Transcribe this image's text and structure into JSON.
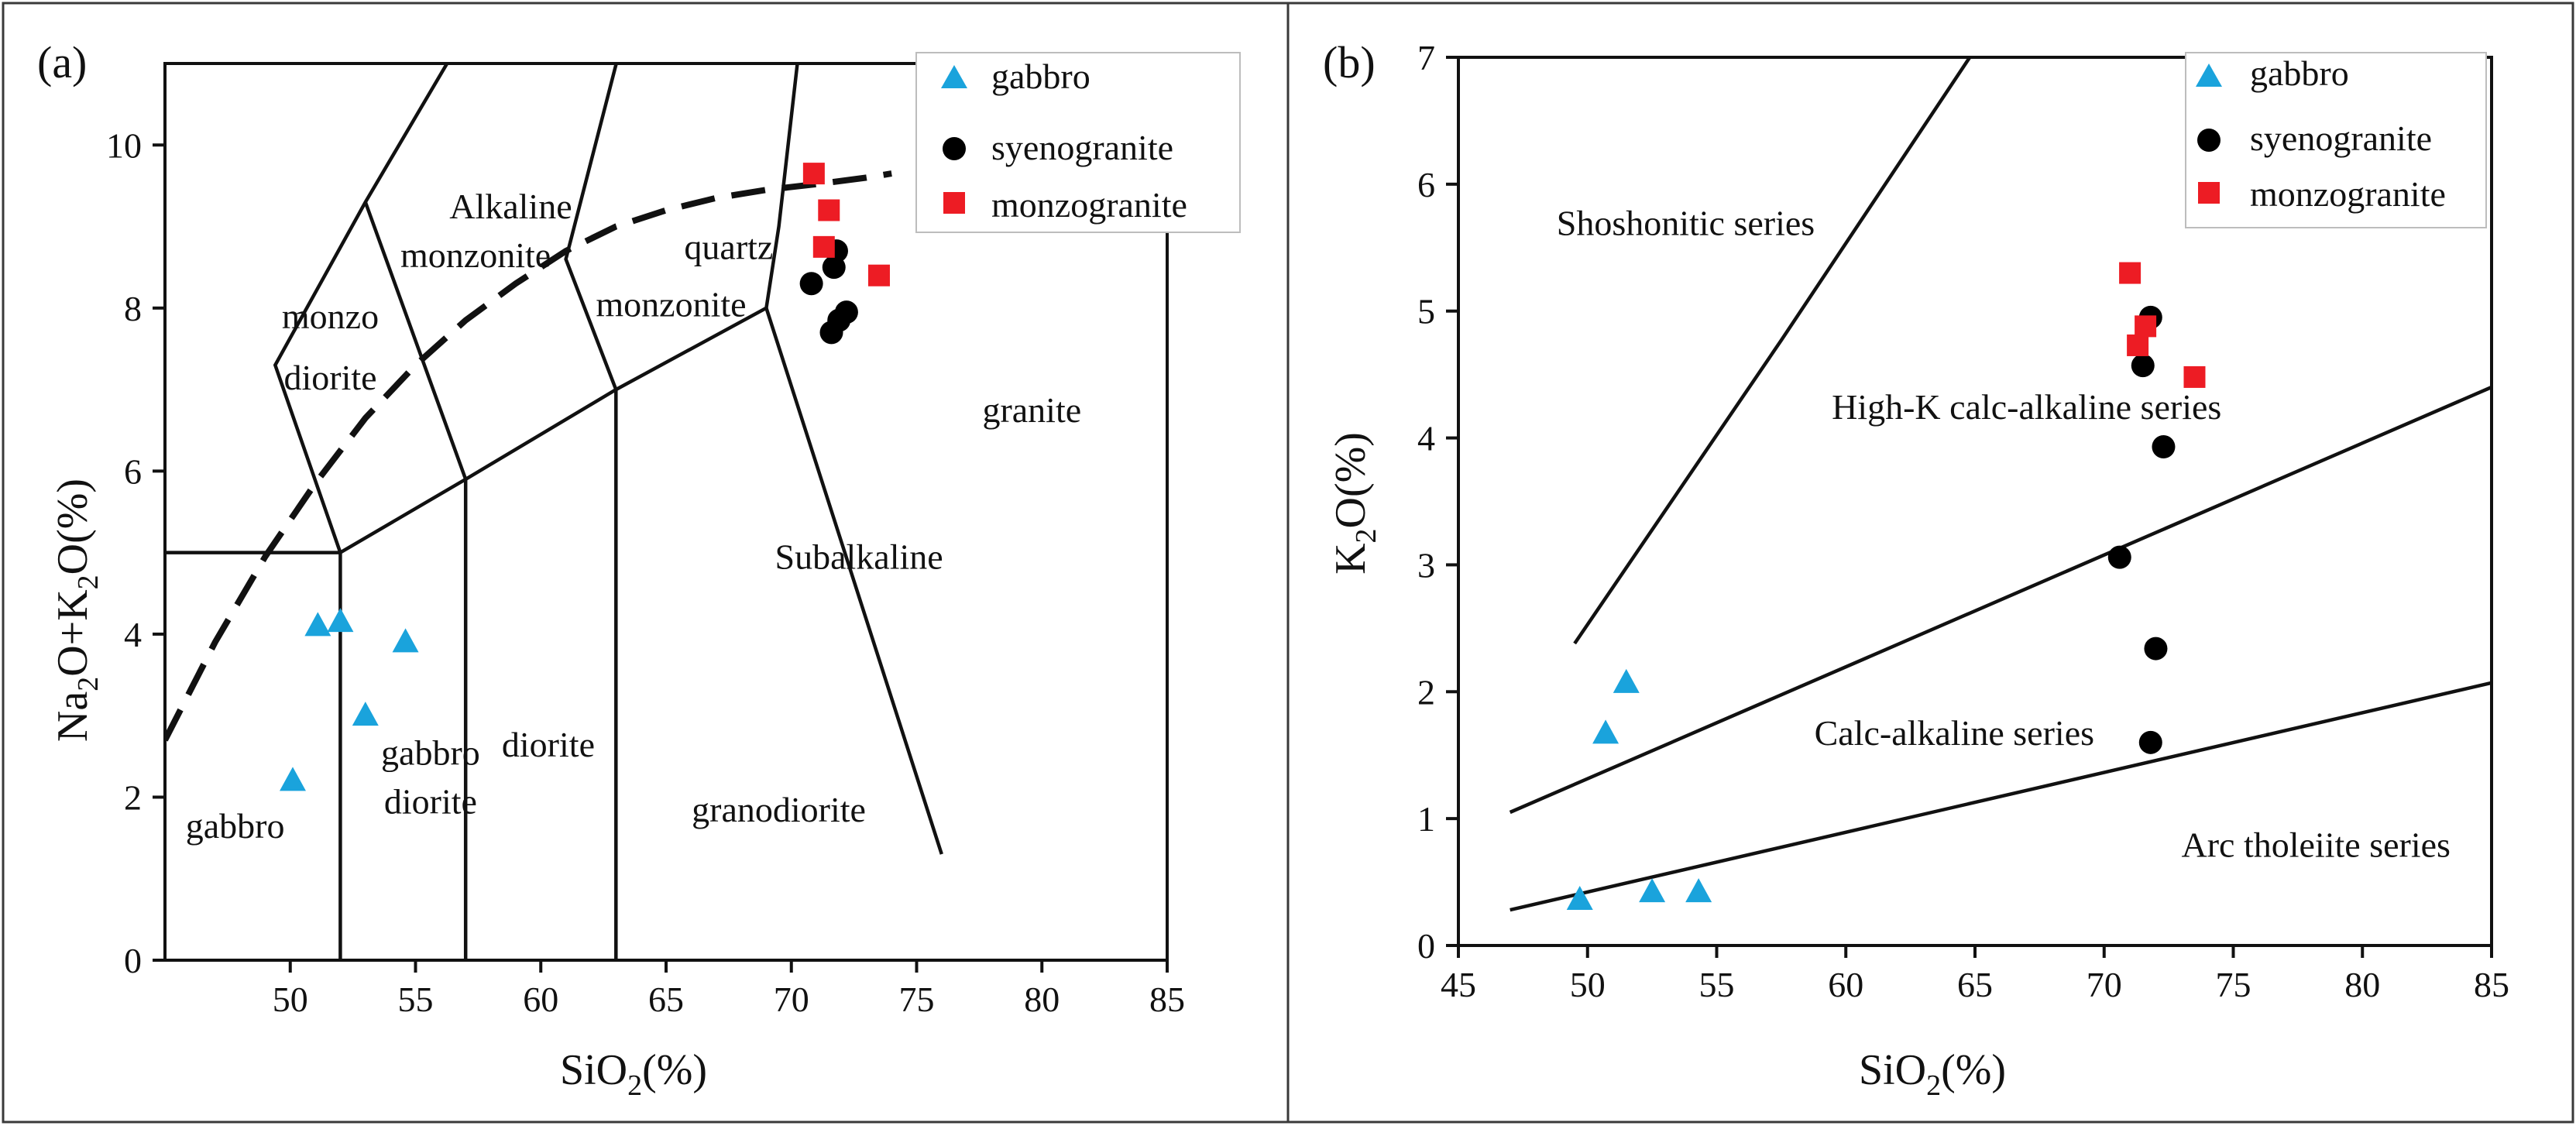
{
  "chart_data": [
    {
      "type": "scatter",
      "panel": "(a)",
      "xlabel": "SiO₂(%)",
      "ylabel": "Na₂O+K₂O(%)",
      "xlim": [
        45,
        85
      ],
      "ylim": [
        0,
        11
      ],
      "xticks": [
        50,
        55,
        60,
        65,
        70,
        75,
        80,
        85
      ],
      "yticks": [
        0,
        2,
        4,
        6,
        8,
        10
      ],
      "legend_position": "top-right",
      "series": [
        {
          "name": "gabbro",
          "marker": "triangle",
          "color": "#1aa3dc",
          "points": [
            [
              50.1,
              2.2
            ],
            [
              51.1,
              4.1
            ],
            [
              52.0,
              4.15
            ],
            [
              53.0,
              3.0
            ],
            [
              54.6,
              3.9
            ]
          ]
        },
        {
          "name": "syenogranite",
          "marker": "circle",
          "color": "#000000",
          "points": [
            [
              70.8,
              8.3
            ],
            [
              71.6,
              7.7
            ],
            [
              71.7,
              8.5
            ],
            [
              71.8,
              8.7
            ],
            [
              71.9,
              7.85
            ],
            [
              72.2,
              7.95
            ]
          ]
        },
        {
          "name": "monzogranite",
          "marker": "square",
          "color": "#ed1c24",
          "points": [
            [
              70.9,
              9.65
            ],
            [
              71.3,
              8.75
            ],
            [
              71.5,
              9.2
            ],
            [
              73.5,
              8.4
            ]
          ]
        }
      ],
      "boundaries": [
        [
          [
            45,
            5
          ],
          [
            52,
            5
          ],
          [
            52,
            0
          ]
        ],
        [
          [
            52,
            5
          ],
          [
            57,
            5.9
          ],
          [
            63,
            7
          ],
          [
            69,
            8
          ],
          [
            76,
            1.3
          ]
        ],
        [
          [
            57,
            5.9
          ],
          [
            57,
            0
          ]
        ],
        [
          [
            63,
            7
          ],
          [
            63,
            0
          ]
        ],
        [
          [
            52,
            5
          ],
          [
            49.4,
            7.3
          ],
          [
            53,
            9.3
          ],
          [
            57.6,
            11.7
          ]
        ],
        [
          [
            57,
            5.9
          ],
          [
            53,
            9.3
          ]
        ],
        [
          [
            63,
            7
          ],
          [
            61,
            8.6
          ],
          [
            63.6,
            11.7
          ]
        ],
        [
          [
            69,
            8
          ],
          [
            69.5,
            9
          ],
          [
            70.5,
            11.7
          ]
        ]
      ],
      "dividing_line": [
        [
          45,
          2.7
        ],
        [
          47,
          3.9
        ],
        [
          49,
          4.95
        ],
        [
          51,
          5.85
        ],
        [
          53,
          6.65
        ],
        [
          55,
          7.3
        ],
        [
          57,
          7.85
        ],
        [
          59,
          8.3
        ],
        [
          61,
          8.7
        ],
        [
          63,
          9.0
        ],
        [
          65,
          9.2
        ],
        [
          67,
          9.35
        ],
        [
          69,
          9.45
        ],
        [
          71,
          9.52
        ],
        [
          73,
          9.6
        ],
        [
          74,
          9.65
        ]
      ],
      "labels": [
        {
          "text": "monzo",
          "x": 51.6,
          "y": 7.75
        },
        {
          "text": "diorite",
          "x": 51.6,
          "y": 7.0
        },
        {
          "text": "Alkaline",
          "x": 58.8,
          "y": 9.1
        },
        {
          "text": "monzonite",
          "x": 57.4,
          "y": 8.5
        },
        {
          "text": "quartz",
          "x": 67.5,
          "y": 8.6
        },
        {
          "text": "monzonite",
          "x": 65.2,
          "y": 7.9
        },
        {
          "text": "granite",
          "x": 79.6,
          "y": 6.6
        },
        {
          "text": "Subalkaline",
          "x": 72.7,
          "y": 4.8
        },
        {
          "text": "gabbro",
          "x": 55.6,
          "y": 2.4
        },
        {
          "text": "diorite",
          "x": 55.6,
          "y": 1.8
        },
        {
          "text": "diorite",
          "x": 60.3,
          "y": 2.5
        },
        {
          "text": "gabbro",
          "x": 47.8,
          "y": 1.5
        },
        {
          "text": "granodiorite",
          "x": 69.5,
          "y": 1.7
        }
      ]
    },
    {
      "type": "scatter",
      "panel": "(b)",
      "xlabel": "SiO₂(%)",
      "ylabel": "K₂O(%)",
      "xlim": [
        45,
        85
      ],
      "ylim": [
        0,
        7
      ],
      "xticks": [
        45,
        50,
        55,
        60,
        65,
        70,
        75,
        80,
        85
      ],
      "yticks": [
        0,
        1,
        2,
        3,
        4,
        5,
        6,
        7
      ],
      "legend_position": "top-right",
      "series": [
        {
          "name": "gabbro",
          "marker": "triangle",
          "color": "#1aa3dc",
          "points": [
            [
              49.7,
              0.36
            ],
            [
              50.7,
              1.67
            ],
            [
              51.5,
              2.07
            ],
            [
              52.5,
              0.42
            ],
            [
              54.3,
              0.42
            ]
          ]
        },
        {
          "name": "syenogranite",
          "marker": "circle",
          "color": "#000000",
          "points": [
            [
              70.6,
              3.06
            ],
            [
              71.5,
              4.57
            ],
            [
              71.8,
              4.95
            ],
            [
              71.8,
              1.6
            ],
            [
              72.0,
              2.34
            ],
            [
              72.3,
              3.93
            ]
          ]
        },
        {
          "name": "monzogranite",
          "marker": "square",
          "color": "#ed1c24",
          "points": [
            [
              71.0,
              5.3
            ],
            [
              71.3,
              4.73
            ],
            [
              71.6,
              4.88
            ],
            [
              73.5,
              4.48
            ]
          ]
        }
      ],
      "boundaries": [
        [
          [
            47,
            0.28
          ],
          [
            85,
            2.07
          ]
        ],
        [
          [
            47,
            1.05
          ],
          [
            85,
            4.4
          ]
        ],
        [
          [
            49.5,
            2.38
          ],
          [
            57.5,
            4.77
          ],
          [
            64.8,
            7.0
          ]
        ]
      ],
      "labels": [
        {
          "text": "Shoshonitic series",
          "x": 53.8,
          "y": 5.6
        },
        {
          "text": "High-K calc-alkaline series",
          "x": 67.0,
          "y": 4.15
        },
        {
          "text": "Calc-alkaline series",
          "x": 64.2,
          "y": 1.58
        },
        {
          "text": "Arc tholeiite series",
          "x": 78.2,
          "y": 0.7
        }
      ]
    }
  ]
}
